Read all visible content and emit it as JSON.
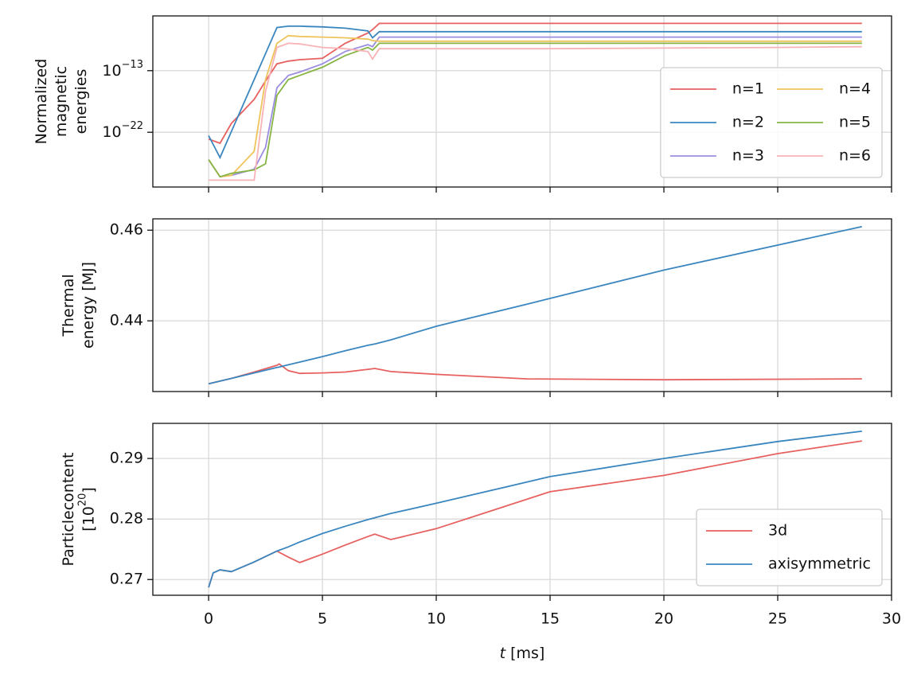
{
  "chart_data": [
    {
      "type": "line",
      "log_y": true,
      "grid": true,
      "show_xtick_labels": false,
      "ylabel": [
        "Normalized",
        "magnetic",
        "energies"
      ],
      "xlim": [
        -2.45,
        30
      ],
      "xticks": [
        0,
        5,
        10,
        15,
        20,
        25,
        30
      ],
      "ylim": [
        1e-30,
        1e-05
      ],
      "yticks": [
        {
          "value": 1e-22,
          "label": [
            "10",
            "−22"
          ]
        },
        {
          "value": 1e-13,
          "label": [
            "10",
            "−13"
          ]
        }
      ],
      "legend": "lower right",
      "legend_columns": 2,
      "x": [
        0,
        0.5,
        1,
        2,
        2.5,
        3,
        3.5,
        4,
        5,
        6,
        7,
        7.2,
        7.5,
        10,
        15,
        20,
        25,
        28.7
      ],
      "series": [
        {
          "name": "n=1",
          "color": "#e6615f",
          "values": [
            1e-23,
            2.5e-24,
            2e-21,
            6.3e-18,
            3.2e-15,
            1e-12,
            2.5e-12,
            4e-12,
            6.3e-12,
            1e-09,
            3.2e-08,
            1e-07,
            8e-07,
            8e-07,
            8e-07,
            8e-07,
            8e-07,
            8e-07
          ]
        },
        {
          "name": "n=2",
          "color": "#3a86bf",
          "values": [
            3.2e-23,
            2e-26,
            1.3e-22,
            5e-15,
            3.2e-11,
            2e-07,
            3.2e-07,
            3.2e-07,
            2.5e-07,
            1.6e-07,
            6.3e-08,
            6.3e-09,
            5e-08,
            5e-08,
            5e-08,
            5e-08,
            5e-08,
            5e-08
          ]
        },
        {
          "name": "n=3",
          "color": "#9b8ee0",
          "values": [
            1e-26,
            3.2e-29,
            5e-29,
            4e-28,
            6.3e-25,
            3.2e-16,
            2e-14,
            6.3e-14,
            1e-12,
            6.3e-11,
            6.3e-10,
            3.2e-10,
            8e-09,
            8e-09,
            8e-09,
            8e-09,
            8e-09,
            8e-09
          ]
        },
        {
          "name": "n=4",
          "color": "#eec45a",
          "values": [
            1e-26,
            3.2e-29,
            5e-29,
            1.6e-25,
            5e-15,
            1e-09,
            1.3e-08,
            1e-08,
            8e-09,
            6.3e-09,
            4e-09,
            2.5e-09,
            2e-09,
            2e-09,
            2e-09,
            2e-09,
            2e-09,
            2e-09
          ]
        },
        {
          "name": "n=5",
          "color": "#86b544",
          "values": [
            1e-26,
            3.2e-29,
            1e-28,
            3.2e-28,
            2.5e-27,
            2.5e-17,
            5e-15,
            2e-14,
            3.2e-13,
            1.6e-11,
            2.5e-10,
            1e-10,
            1e-09,
            1e-09,
            1e-09,
            1e-09,
            1e-09,
            1e-09
          ]
        },
        {
          "name": "n=6",
          "color": "#f7b3b5",
          "values": [
            1e-29,
            1e-29,
            1e-29,
            1e-29,
            1e-16,
            2.5e-10,
            1e-09,
            8e-10,
            2.5e-10,
            1.6e-10,
            6.3e-11,
            5e-12,
            1.6e-10,
            1.6e-10,
            1.6e-10,
            2e-10,
            2.5e-10,
            3.2e-10
          ]
        }
      ]
    },
    {
      "type": "line",
      "grid": true,
      "show_xtick_labels": false,
      "ylabel": [
        "Thermal",
        "energy [MJ]"
      ],
      "xlim": [
        -2.45,
        30
      ],
      "xticks": [
        0,
        5,
        10,
        15,
        20,
        25,
        30
      ],
      "ylim": [
        0.4244,
        0.4625
      ],
      "yticks": [
        0.44,
        0.46
      ],
      "x": [
        0,
        1,
        2,
        3,
        3.1,
        3.5,
        4,
        5,
        6,
        7,
        7.3,
        8,
        10,
        14,
        20,
        28.7
      ],
      "series": [
        {
          "color": "#e6615f",
          "values": [
            0.4261,
            0.4273,
            0.4287,
            0.4302,
            0.4305,
            0.429,
            0.4284,
            0.4285,
            0.4287,
            0.4293,
            0.4295,
            0.4288,
            0.4282,
            0.4272,
            0.427,
            0.4272
          ]
        },
        {
          "color": "#3a86bf",
          "values": [
            0.4261,
            0.4273,
            0.4285,
            0.4297,
            0.4298,
            0.4303,
            0.4309,
            0.4321,
            0.4334,
            0.4346,
            0.4349,
            0.4358,
            0.4388,
            0.4437,
            0.4512,
            0.4608
          ]
        }
      ]
    },
    {
      "type": "line",
      "grid": true,
      "show_xtick_labels": true,
      "ylabel": [
        "Particlecontent",
        [
          "[10",
          "20",
          "]"
        ]
      ],
      "xlabel": [
        "t",
        "[ms]"
      ],
      "xlim": [
        -2.45,
        30
      ],
      "xticks": [
        0,
        5,
        10,
        15,
        20,
        25,
        30
      ],
      "ylim": [
        0.2674,
        0.2958
      ],
      "yticks": [
        0.27,
        0.28,
        0.29
      ],
      "legend": "lower right",
      "legend_columns": 1,
      "x": [
        0,
        0.2,
        0.5,
        1,
        2,
        3,
        3.5,
        4,
        5,
        6,
        7,
        7.3,
        8,
        10,
        15,
        20,
        25,
        28.7
      ],
      "series": [
        {
          "name": "3d",
          "color": "#e6615f",
          "values": [
            0.2687,
            0.2711,
            0.2716,
            0.2713,
            0.2729,
            0.2747,
            0.2737,
            0.2728,
            0.2742,
            0.2757,
            0.2771,
            0.2775,
            0.2766,
            0.2784,
            0.2845,
            0.2872,
            0.2908,
            0.2929
          ]
        },
        {
          "name": "axisymmetric",
          "color": "#3a86bf",
          "values": [
            0.2687,
            0.2711,
            0.2716,
            0.2713,
            0.2729,
            0.2747,
            0.2754,
            0.2762,
            0.2776,
            0.2788,
            0.2799,
            0.2802,
            0.2809,
            0.2826,
            0.287,
            0.29,
            0.2928,
            0.2945
          ]
        }
      ]
    }
  ]
}
